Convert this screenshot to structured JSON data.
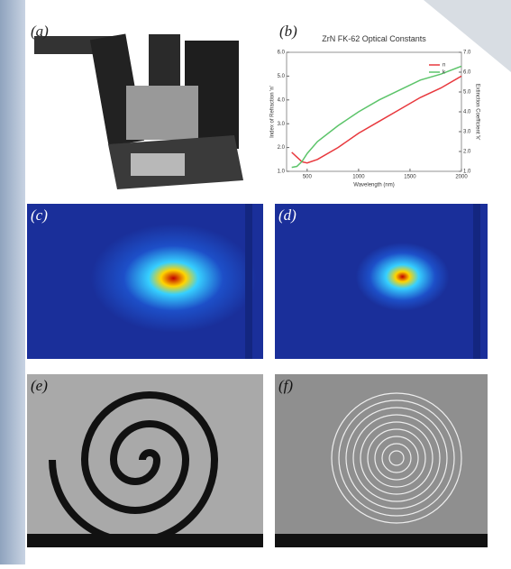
{
  "panels": {
    "labels": [
      "(a)",
      "(b)",
      "(c)",
      "(d)",
      "(e)",
      "(f)"
    ]
  },
  "chart_data": {
    "type": "line",
    "title": "ZrN FK-62 Optical Constants",
    "x_label": "Wavelength (nm)",
    "y_label": "Index of Refraction 'n'",
    "y2_label": "Extinction Coefficient 'k'",
    "x": [
      350,
      400,
      450,
      500,
      600,
      800,
      1000,
      1200,
      1400,
      1600,
      1800,
      2000
    ],
    "series": [
      {
        "name": "n",
        "color": "#e8383d",
        "axis": "y",
        "values": [
          1.8,
          1.6,
          1.4,
          1.35,
          1.5,
          2.0,
          2.6,
          3.1,
          3.6,
          4.1,
          4.5,
          5.0
        ]
      },
      {
        "name": "k",
        "color": "#5cc46a",
        "axis": "y2",
        "values": [
          1.2,
          1.25,
          1.5,
          1.9,
          2.5,
          3.3,
          4.0,
          4.6,
          5.1,
          5.6,
          5.9,
          6.3
        ]
      }
    ],
    "xlim": [
      300,
      2000
    ],
    "xticks": [
      500,
      1000,
      1500,
      2000
    ],
    "ylim": [
      1,
      6
    ],
    "yticks": [
      {
        "value": 1,
        "label": "1.0"
      },
      {
        "value": 2,
        "label": "2.0"
      },
      {
        "value": 3,
        "label": "3.0"
      },
      {
        "value": 4,
        "label": "4.0"
      },
      {
        "value": 5,
        "label": "5.0"
      },
      {
        "value": 6,
        "label": "6.0"
      }
    ],
    "y2lim": [
      1,
      7
    ],
    "y2ticks": [
      {
        "value": 1,
        "label": "1.0"
      },
      {
        "value": 2,
        "label": "2.0"
      },
      {
        "value": 3,
        "label": "3.0"
      },
      {
        "value": 4,
        "label": "4.0"
      },
      {
        "value": 5,
        "label": "5.0"
      },
      {
        "value": 6,
        "label": "6.0"
      },
      {
        "value": 7,
        "label": "7.0"
      }
    ],
    "legend": "upper right"
  }
}
